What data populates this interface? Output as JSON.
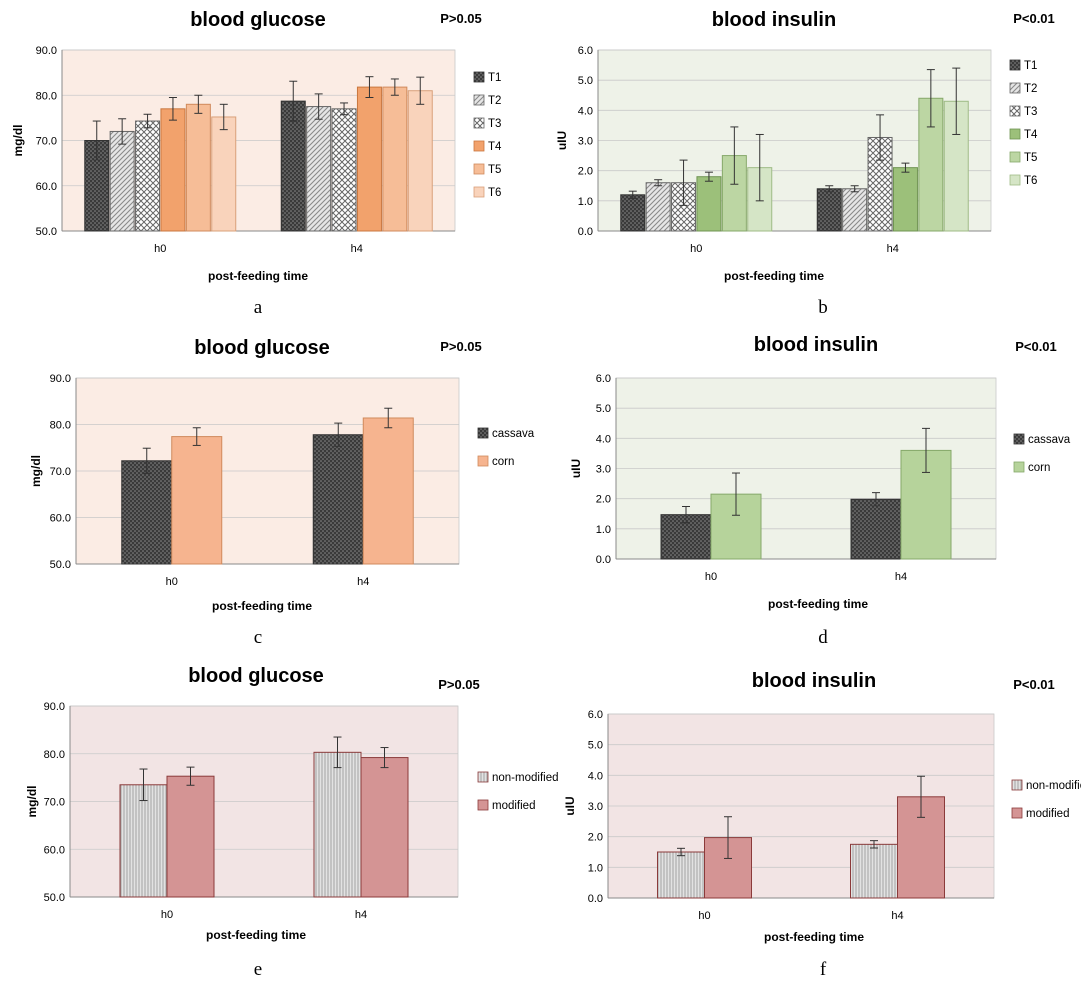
{
  "chart_data": [
    {
      "id": "a",
      "type": "bar",
      "title": "blood glucose",
      "annotation": "P>0.05",
      "xlabel": "post-feeding time",
      "ylabel": "mg/dl",
      "ylim": [
        50,
        90
      ],
      "yticks": [
        "50.0",
        "60.0",
        "70.0",
        "80.0",
        "90.0"
      ],
      "categories": [
        "h0",
        "h4"
      ],
      "series": [
        {
          "name": "T1",
          "values": [
            70.0,
            78.7
          ],
          "errors": [
            4.3,
            4.4
          ],
          "fill": "#4a4a4a",
          "pattern": "dots-dark",
          "stroke": "#333333"
        },
        {
          "name": "T2",
          "values": [
            72.0,
            77.5
          ],
          "errors": [
            2.8,
            2.8
          ],
          "fill": "#cfcfcf",
          "pattern": "hatch",
          "stroke": "#666666"
        },
        {
          "name": "T3",
          "values": [
            74.3,
            77.0
          ],
          "errors": [
            1.5,
            1.3
          ],
          "fill": "#ffffff",
          "pattern": "checker",
          "stroke": "#666666"
        },
        {
          "name": "T4",
          "values": [
            77.0,
            81.8
          ],
          "errors": [
            2.5,
            2.3
          ],
          "fill": "#f2a26c",
          "pattern": "none",
          "stroke": "#c9773f"
        },
        {
          "name": "T5",
          "values": [
            78.0,
            81.8
          ],
          "errors": [
            2.0,
            1.8
          ],
          "fill": "#f6bd97",
          "pattern": "none",
          "stroke": "#d08a5c"
        },
        {
          "name": "T6",
          "values": [
            75.2,
            81.0
          ],
          "errors": [
            2.8,
            3.0
          ],
          "fill": "#f9d3bb",
          "pattern": "none",
          "stroke": "#d9a07a"
        }
      ],
      "plot_bg": "#fbece4",
      "grid": true,
      "legend": "right",
      "panel_label": "a"
    },
    {
      "id": "b",
      "type": "bar",
      "title": "blood insulin",
      "annotation": "P<0.01",
      "xlabel": "post-feeding time",
      "ylabel": "uIU",
      "ylim": [
        0,
        6
      ],
      "yticks": [
        "0.0",
        "1.0",
        "2.0",
        "3.0",
        "4.0",
        "5.0",
        "6.0"
      ],
      "categories": [
        "h0",
        "h4"
      ],
      "series": [
        {
          "name": "T1",
          "values": [
            1.2,
            1.4
          ],
          "errors": [
            0.12,
            0.1
          ],
          "fill": "#4a4a4a",
          "pattern": "dots-dark",
          "stroke": "#333333"
        },
        {
          "name": "T2",
          "values": [
            1.6,
            1.4
          ],
          "errors": [
            0.1,
            0.1
          ],
          "fill": "#cfcfcf",
          "pattern": "hatch",
          "stroke": "#666666"
        },
        {
          "name": "T3",
          "values": [
            1.6,
            3.1
          ],
          "errors": [
            0.75,
            0.75
          ],
          "fill": "#ffffff",
          "pattern": "checker",
          "stroke": "#666666"
        },
        {
          "name": "T4",
          "values": [
            1.8,
            2.1
          ],
          "errors": [
            0.15,
            0.15
          ],
          "fill": "#9cc07a",
          "pattern": "none",
          "stroke": "#6f9452"
        },
        {
          "name": "T5",
          "values": [
            2.5,
            4.4
          ],
          "errors": [
            0.95,
            0.95
          ],
          "fill": "#bcd6a3",
          "pattern": "none",
          "stroke": "#86a86a"
        },
        {
          "name": "T6",
          "values": [
            2.1,
            4.3
          ],
          "errors": [
            1.1,
            1.1
          ],
          "fill": "#d5e5c6",
          "pattern": "none",
          "stroke": "#9fbb86"
        }
      ],
      "plot_bg": "#eef2e8",
      "grid": true,
      "legend": "right",
      "panel_label": "b"
    },
    {
      "id": "c",
      "type": "bar",
      "title": "blood glucose",
      "annotation": "P>0.05",
      "xlabel": "post-feeding time",
      "ylabel": "mg/dl",
      "ylim": [
        50,
        90
      ],
      "yticks": [
        "50.0",
        "60.0",
        "70.0",
        "80.0",
        "90.0"
      ],
      "categories": [
        "h0",
        "h4"
      ],
      "series": [
        {
          "name": "cassava",
          "values": [
            72.2,
            77.8
          ],
          "errors": [
            2.7,
            2.5
          ],
          "fill": "#4a4a4a",
          "pattern": "dots-dark",
          "stroke": "#333333"
        },
        {
          "name": "corn",
          "values": [
            77.4,
            81.4
          ],
          "errors": [
            1.9,
            2.1
          ],
          "fill": "#f6b48f",
          "pattern": "none",
          "stroke": "#d08a5c"
        }
      ],
      "plot_bg": "#fbece4",
      "grid": true,
      "legend": "right",
      "panel_label": "c"
    },
    {
      "id": "d",
      "type": "bar",
      "title": "blood insulin",
      "annotation": "P<0.01",
      "xlabel": "post-feeding time",
      "ylabel": "uIU",
      "ylim": [
        0,
        6
      ],
      "yticks": [
        "0.0",
        "1.0",
        "2.0",
        "3.0",
        "4.0",
        "5.0",
        "6.0"
      ],
      "categories": [
        "h0",
        "h4"
      ],
      "series": [
        {
          "name": "cassava",
          "values": [
            1.47,
            1.98
          ],
          "errors": [
            0.27,
            0.22
          ],
          "fill": "#4a4a4a",
          "pattern": "dots-dark",
          "stroke": "#333333"
        },
        {
          "name": "corn",
          "values": [
            2.15,
            3.6
          ],
          "errors": [
            0.7,
            0.73
          ],
          "fill": "#b6d39b",
          "pattern": "none",
          "stroke": "#86a86a"
        }
      ],
      "plot_bg": "#eef2e8",
      "grid": true,
      "legend": "right",
      "panel_label": "d"
    },
    {
      "id": "e",
      "type": "bar",
      "title": "blood glucose",
      "annotation": "P>0.05",
      "xlabel": "post-feeding time",
      "ylabel": "mg/dl",
      "ylim": [
        50,
        90
      ],
      "yticks": [
        "50.0",
        "60.0",
        "70.0",
        "80.0",
        "90.0"
      ],
      "categories": [
        "h0",
        "h4"
      ],
      "series": [
        {
          "name": "non-modified",
          "values": [
            73.5,
            80.3
          ],
          "errors": [
            3.3,
            3.2
          ],
          "fill": "#d6d6d6",
          "pattern": "vlines",
          "stroke": "#8b3a3a"
        },
        {
          "name": "modified",
          "values": [
            75.3,
            79.2
          ],
          "errors": [
            1.9,
            2.1
          ],
          "fill": "#d49494",
          "pattern": "none",
          "stroke": "#8b3a3a"
        }
      ],
      "plot_bg": "#f2e4e4",
      "grid": true,
      "legend": "right",
      "panel_label": "e"
    },
    {
      "id": "f",
      "type": "bar",
      "title": "blood insulin",
      "annotation": "P<0.01",
      "xlabel": "post-feeding time",
      "ylabel": "uIU",
      "ylim": [
        0,
        6
      ],
      "yticks": [
        "0.0",
        "1.0",
        "2.0",
        "3.0",
        "4.0",
        "5.0",
        "6.0"
      ],
      "categories": [
        "h0",
        "h4"
      ],
      "series": [
        {
          "name": "non-modified",
          "values": [
            1.5,
            1.75
          ],
          "errors": [
            0.12,
            0.12
          ],
          "fill": "#d6d6d6",
          "pattern": "vlines",
          "stroke": "#8b3a3a"
        },
        {
          "name": "modified",
          "values": [
            1.97,
            3.3
          ],
          "errors": [
            0.68,
            0.67
          ],
          "fill": "#d49494",
          "pattern": "none",
          "stroke": "#8b3a3a"
        }
      ],
      "plot_bg": "#f2e4e4",
      "grid": true,
      "legend": "right",
      "panel_label": "f"
    }
  ]
}
